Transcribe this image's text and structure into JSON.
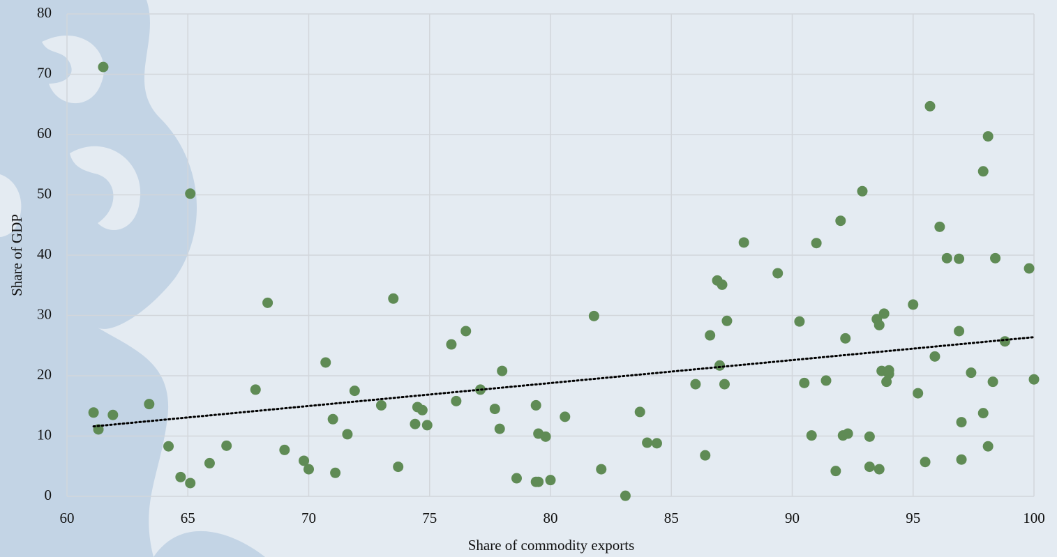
{
  "chart_data": {
    "type": "scatter",
    "x_label": "Share of commodity exports",
    "y_label": "Share of GDP",
    "x": [
      61.1,
      61.3,
      61.5,
      61.9,
      63.4,
      64.2,
      64.7,
      65.1,
      65.1,
      65.9,
      66.6,
      67.8,
      68.3,
      69.0,
      69.8,
      70.0,
      70.7,
      71.0,
      71.1,
      71.6,
      71.9,
      73.0,
      73.5,
      73.7,
      74.4,
      74.5,
      74.7,
      74.9,
      75.9,
      76.1,
      76.5,
      77.1,
      77.7,
      77.9,
      78.0,
      78.6,
      79.4,
      79.4,
      79.5,
      79.5,
      79.8,
      80.0,
      80.6,
      81.8,
      82.1,
      83.1,
      83.7,
      84.0,
      84.4,
      86.0,
      86.4,
      86.6,
      86.9,
      87.0,
      87.1,
      87.2,
      87.3,
      88.0,
      89.4,
      90.3,
      90.5,
      90.8,
      91.0,
      91.4,
      91.8,
      92.0,
      92.1,
      92.2,
      92.3,
      92.9,
      93.2,
      93.2,
      93.5,
      93.6,
      93.6,
      93.7,
      93.8,
      93.9,
      94.0,
      94.0,
      95.0,
      95.2,
      95.5,
      95.7,
      95.9,
      96.1,
      96.4,
      96.9,
      96.9,
      97.0,
      97.0,
      97.4,
      97.9,
      97.9,
      98.1,
      98.1,
      98.3,
      98.4,
      98.8,
      99.8,
      100.0
    ],
    "values": [
      13.9,
      11.1,
      71.2,
      13.5,
      15.3,
      8.3,
      3.2,
      50.2,
      2.2,
      5.5,
      8.4,
      17.7,
      32.1,
      7.7,
      5.9,
      4.5,
      22.2,
      12.8,
      3.9,
      10.3,
      17.5,
      15.1,
      32.8,
      4.9,
      12.0,
      14.8,
      14.3,
      11.8,
      25.2,
      15.8,
      27.4,
      17.7,
      14.5,
      11.2,
      20.8,
      3.0,
      15.1,
      2.4,
      2.4,
      10.4,
      9.9,
      2.7,
      13.2,
      29.9,
      4.5,
      0.1,
      14.0,
      8.9,
      8.8,
      18.6,
      6.8,
      26.7,
      35.8,
      21.7,
      35.1,
      18.6,
      29.1,
      42.1,
      37.0,
      29.0,
      18.8,
      10.1,
      42.0,
      19.2,
      4.2,
      45.7,
      10.1,
      26.2,
      10.4,
      50.6,
      9.9,
      4.9,
      29.4,
      28.4,
      4.5,
      20.8,
      30.3,
      19.0,
      20.3,
      20.9,
      31.8,
      17.1,
      5.7,
      64.7,
      23.2,
      44.7,
      39.5,
      27.4,
      39.4,
      12.3,
      6.1,
      20.5,
      53.9,
      13.8,
      59.7,
      8.3,
      19.0,
      39.5,
      25.7,
      37.8,
      19.4
    ],
    "color": "#5f8b55",
    "trendline": {
      "x": [
        61.1,
        100
      ],
      "values": [
        11.6,
        26.4
      ],
      "color": "#000000"
    },
    "xlim": [
      60,
      100
    ],
    "xticks": [
      60,
      65,
      70,
      75,
      80,
      85,
      90,
      95,
      100
    ],
    "ylim": [
      0,
      80
    ],
    "yticks": [
      0,
      10,
      20,
      30,
      40,
      50,
      60,
      70,
      80
    ],
    "grid": true
  }
}
